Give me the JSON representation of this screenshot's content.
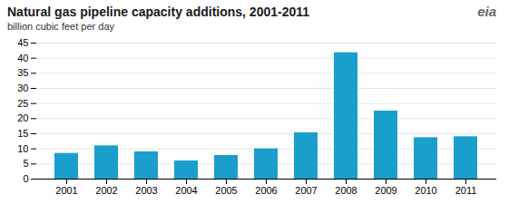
{
  "chart_data": {
    "type": "bar",
    "title": "Natural gas pipeline capacity additions, 2001-2011",
    "subtitle": "billion cubic feet per day",
    "annotations": [
      "eia"
    ],
    "categories": [
      "2001",
      "2002",
      "2003",
      "2004",
      "2005",
      "2006",
      "2007",
      "2008",
      "2009",
      "2010",
      "2011"
    ],
    "values": [
      8.5,
      11.0,
      9.0,
      6.0,
      7.8,
      10.0,
      15.3,
      41.8,
      22.5,
      13.7,
      14.0
    ],
    "color": "#1a9fcc",
    "ylim": [
      0,
      45
    ],
    "yticks": [
      0,
      5,
      10,
      15,
      20,
      25,
      30,
      35,
      40,
      45
    ],
    "grid": true
  }
}
